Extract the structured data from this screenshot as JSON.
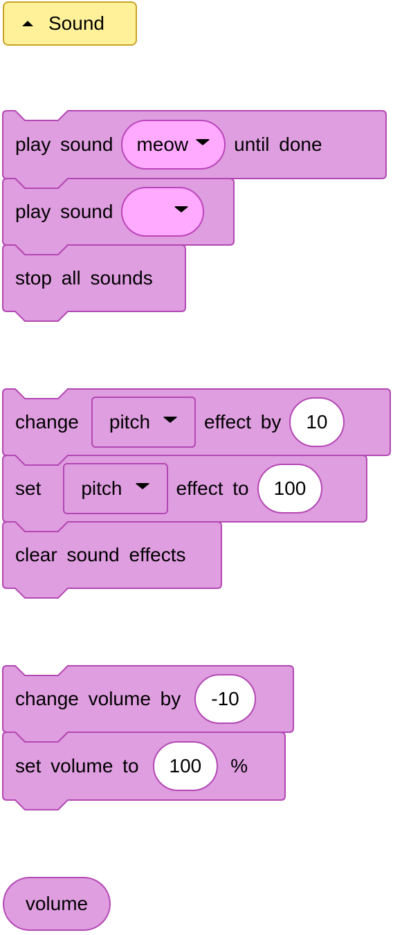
{
  "category": {
    "label": "Sound",
    "icon": "collapse-triangle-icon"
  },
  "groups": {
    "play": {
      "play_until_done": {
        "prefix": "play sound",
        "menu_value": "meow",
        "suffix": "until done"
      },
      "play": {
        "prefix": "play sound",
        "menu_value": ""
      },
      "stop_all": {
        "label": "stop all sounds"
      }
    },
    "effects": {
      "change_effect": {
        "prefix": "change",
        "menu_value": "pitch",
        "middle": "effect by",
        "input_value": "10"
      },
      "set_effect": {
        "prefix": "set",
        "menu_value": "pitch",
        "middle": "effect to",
        "input_value": "100"
      },
      "clear_effects": {
        "label": "clear sound effects"
      }
    },
    "volume": {
      "change_volume": {
        "prefix": "change volume by",
        "input_value": "-10"
      },
      "set_volume": {
        "prefix": "set volume to",
        "input_value": "100",
        "suffix": "%"
      }
    },
    "reporter": {
      "label": "volume"
    }
  },
  "colors": {
    "block_fill": "#df9ee0",
    "block_stroke": "#b347b3",
    "menu_fill": "#ffaaff",
    "category_fill": "#fff199"
  }
}
